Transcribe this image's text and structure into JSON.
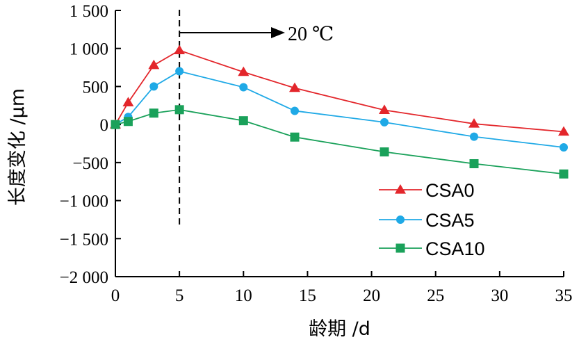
{
  "chart_data": {
    "type": "line",
    "title": "",
    "xlabel": "龄期 /d",
    "ylabel": "长度变化 /μm",
    "xlim": [
      0,
      35
    ],
    "ylim": [
      -2000,
      1500
    ],
    "x_ticks": [
      0,
      5,
      10,
      15,
      20,
      25,
      30,
      35
    ],
    "x_tick_labels": [
      "0",
      "5",
      "10",
      "15",
      "20",
      "25",
      "30",
      "35"
    ],
    "y_ticks": [
      1500,
      1000,
      500,
      0,
      -500,
      -1000,
      -1500,
      -2000
    ],
    "y_tick_labels": [
      "1 500",
      "1 000",
      "500",
      "0",
      "−500",
      "−1 000",
      "−1 500",
      "−2 000"
    ],
    "grid": false,
    "legend_position": "lower-right",
    "annotation": {
      "text": "20 ℃",
      "vline_x": 5
    },
    "series": [
      {
        "name": "CSA0",
        "color": "#e3262b",
        "marker": "triangle",
        "x": [
          0,
          1,
          3,
          5,
          10,
          14,
          21,
          28,
          35
        ],
        "y": [
          0,
          290,
          780,
          975,
          690,
          480,
          190,
          10,
          -95
        ]
      },
      {
        "name": "CSA5",
        "color": "#1fa9e6",
        "marker": "circle",
        "x": [
          0,
          1,
          3,
          5,
          10,
          14,
          21,
          28,
          35
        ],
        "y": [
          0,
          100,
          500,
          700,
          490,
          180,
          30,
          -160,
          -300
        ]
      },
      {
        "name": "CSA10",
        "color": "#1aa15a",
        "marker": "square",
        "x": [
          0,
          1,
          3,
          5,
          10,
          14,
          21,
          28,
          35
        ],
        "y": [
          0,
          40,
          150,
          195,
          50,
          -165,
          -360,
          -515,
          -650
        ]
      }
    ]
  }
}
